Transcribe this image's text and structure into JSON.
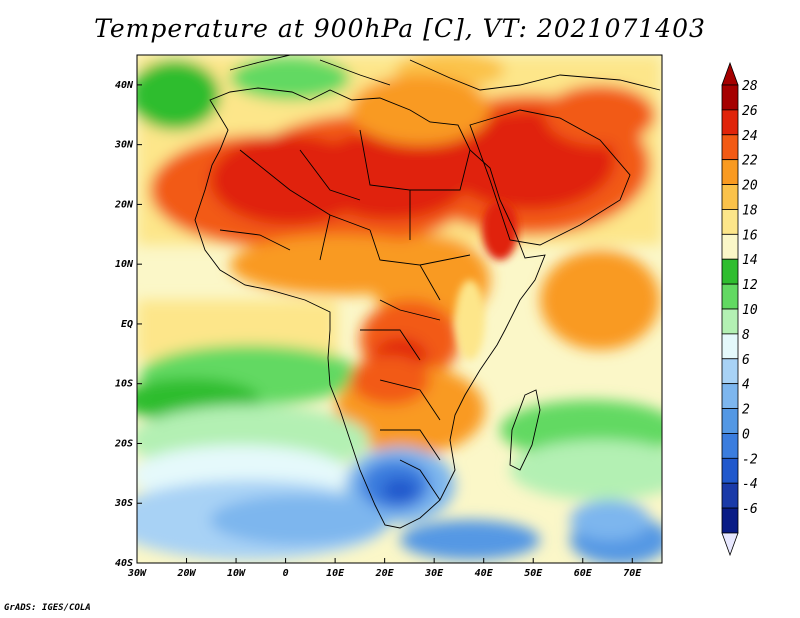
{
  "title": "Temperature at 900hPa [C], VT: 2021071403",
  "credit": "GrADS: IGES/COLA",
  "map": {
    "projection": "lat-lon",
    "variable": "Temperature at 900hPa",
    "units": "C",
    "region": "Africa",
    "lon_range": [
      -30,
      76
    ],
    "lat_range": [
      -40,
      45
    ],
    "lon_ticks": [
      {
        "value": -30,
        "label": "30W"
      },
      {
        "value": -20,
        "label": "20W"
      },
      {
        "value": -10,
        "label": "10W"
      },
      {
        "value": 0,
        "label": "0"
      },
      {
        "value": 10,
        "label": "10E"
      },
      {
        "value": 20,
        "label": "20E"
      },
      {
        "value": 30,
        "label": "30E"
      },
      {
        "value": 40,
        "label": "40E"
      },
      {
        "value": 50,
        "label": "50E"
      },
      {
        "value": 60,
        "label": "60E"
      },
      {
        "value": 70,
        "label": "70E"
      }
    ],
    "lat_ticks": [
      {
        "value": 40,
        "label": "40N"
      },
      {
        "value": 30,
        "label": "30N"
      },
      {
        "value": 20,
        "label": "20N"
      },
      {
        "value": 10,
        "label": "10N"
      },
      {
        "value": 0,
        "label": "EQ"
      },
      {
        "value": -10,
        "label": "10S"
      },
      {
        "value": -20,
        "label": "20S"
      },
      {
        "value": -30,
        "label": "30S"
      },
      {
        "value": -40,
        "label": "40S"
      }
    ]
  },
  "colorbar": {
    "levels": [
      {
        "label": "28",
        "color": "#a50000"
      },
      {
        "label": "26",
        "color": "#e0240a"
      },
      {
        "label": "24",
        "color": "#f25a14"
      },
      {
        "label": "22",
        "color": "#f99a21"
      },
      {
        "label": "20",
        "color": "#fbc24a"
      },
      {
        "label": "18",
        "color": "#fde68a"
      },
      {
        "label": "16",
        "color": "#fbf7c8"
      },
      {
        "label": "14",
        "color": "#2fbd2f"
      },
      {
        "label": "12",
        "color": "#62d962"
      },
      {
        "label": "10",
        "color": "#b3f0b3"
      },
      {
        "label": "8",
        "color": "#e5f9fb"
      },
      {
        "label": "6",
        "color": "#a8d2f5"
      },
      {
        "label": "4",
        "color": "#7db6ee"
      },
      {
        "label": "2",
        "color": "#5498e4"
      },
      {
        "label": "0",
        "color": "#3b7dde"
      },
      {
        "label": "-2",
        "color": "#2058cc"
      },
      {
        "label": "-4",
        "color": "#1a3aa8"
      },
      {
        "label": "-6",
        "color": "#0a1c86"
      }
    ],
    "top_color": "#a50000",
    "bottom_color": "#e8e8ff"
  }
}
